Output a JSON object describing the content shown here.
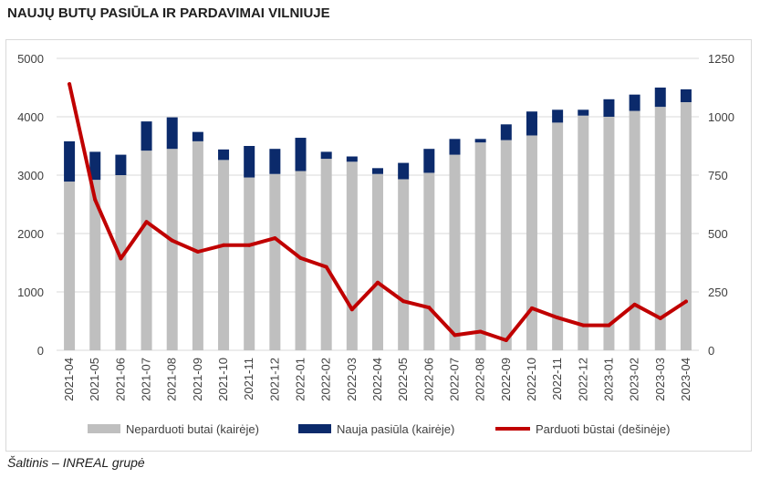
{
  "title": "NAUJŲ BUTŲ PASIŪLA IR PARDAVIMAI VILNIUJE",
  "source": "Šaltinis – INREAL grupė",
  "colors": {
    "unsold": "#bfbfbf",
    "new_supply": "#0b2a6b",
    "sold": "#c00000",
    "grid": "#d9d9d9"
  },
  "chart_data": {
    "type": "bar",
    "stacked": true,
    "categories": [
      "2021-04",
      "2021-05",
      "2021-06",
      "2021-07",
      "2021-08",
      "2021-09",
      "2021-10",
      "2021-11",
      "2021-12",
      "2022-01",
      "2022-02",
      "2022-03",
      "2022-04",
      "2022-05",
      "2022-06",
      "2022-07",
      "2022-08",
      "2022-09",
      "2022-10",
      "2022-11",
      "2022-12",
      "2023-01",
      "2023-02",
      "2023-03",
      "2023-04"
    ],
    "left_axis": {
      "min": 0,
      "max": 5000,
      "ticks": [
        "0",
        "1000",
        "2000",
        "3000",
        "4000",
        "5000"
      ]
    },
    "right_axis": {
      "min": 0,
      "max": 1250,
      "ticks": [
        "0",
        "250",
        "500",
        "750",
        "1000",
        "1250"
      ]
    },
    "series": [
      {
        "name": "Neparduoti butai (kairėje)",
        "type": "bar",
        "axis": "left",
        "values": [
          2890,
          2920,
          3000,
          3420,
          3450,
          3580,
          3260,
          2960,
          3020,
          3070,
          3280,
          3230,
          3020,
          2930,
          3040,
          3350,
          3560,
          3600,
          3680,
          3900,
          4020,
          4000,
          4100,
          4170,
          4250
        ]
      },
      {
        "name": "Nauja pasiūla (kairėje)",
        "type": "bar",
        "axis": "left",
        "values": [
          690,
          480,
          350,
          500,
          540,
          160,
          180,
          540,
          430,
          570,
          120,
          90,
          100,
          280,
          410,
          270,
          60,
          270,
          410,
          220,
          100,
          300,
          280,
          330,
          220
        ]
      },
      {
        "name": "Parduoti būstai (dešinėje)",
        "type": "line",
        "axis": "right",
        "values": [
          1140,
          645,
          393,
          550,
          470,
          422,
          450,
          450,
          480,
          395,
          357,
          175,
          290,
          210,
          183,
          65,
          80,
          43,
          180,
          140,
          107,
          107,
          196,
          137,
          209
        ]
      }
    ],
    "grid": true,
    "legend": "bottom"
  }
}
